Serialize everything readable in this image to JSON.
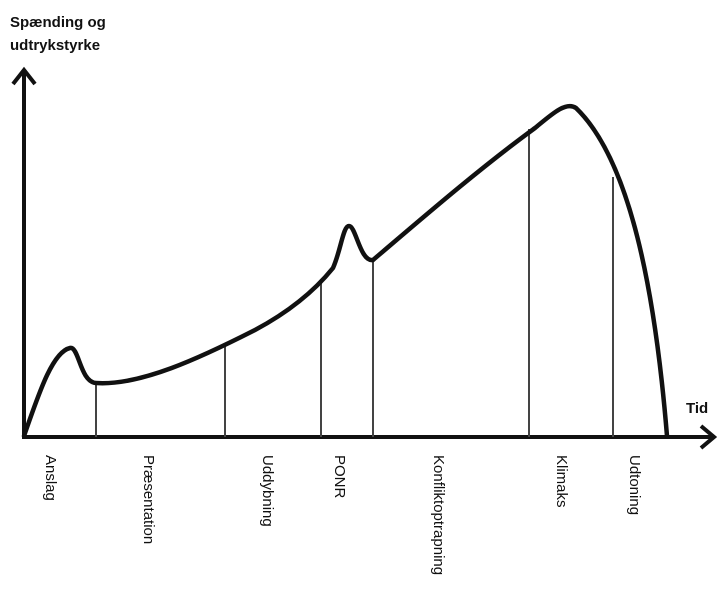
{
  "axes": {
    "y_label_line1": "Spænding og",
    "y_label_line2": "udtrykstyrke",
    "x_label": "Tid"
  },
  "phases": [
    {
      "label": "Anslag"
    },
    {
      "label": "Præsentation"
    },
    {
      "label": "Uddybning"
    },
    {
      "label": "PONR"
    },
    {
      "label": "Konfliktoptrapning"
    },
    {
      "label": "Klimaks"
    },
    {
      "label": "Udtoning"
    }
  ],
  "colors": {
    "line": "#111111",
    "divider": "#444444",
    "background": "#ffffff"
  }
}
